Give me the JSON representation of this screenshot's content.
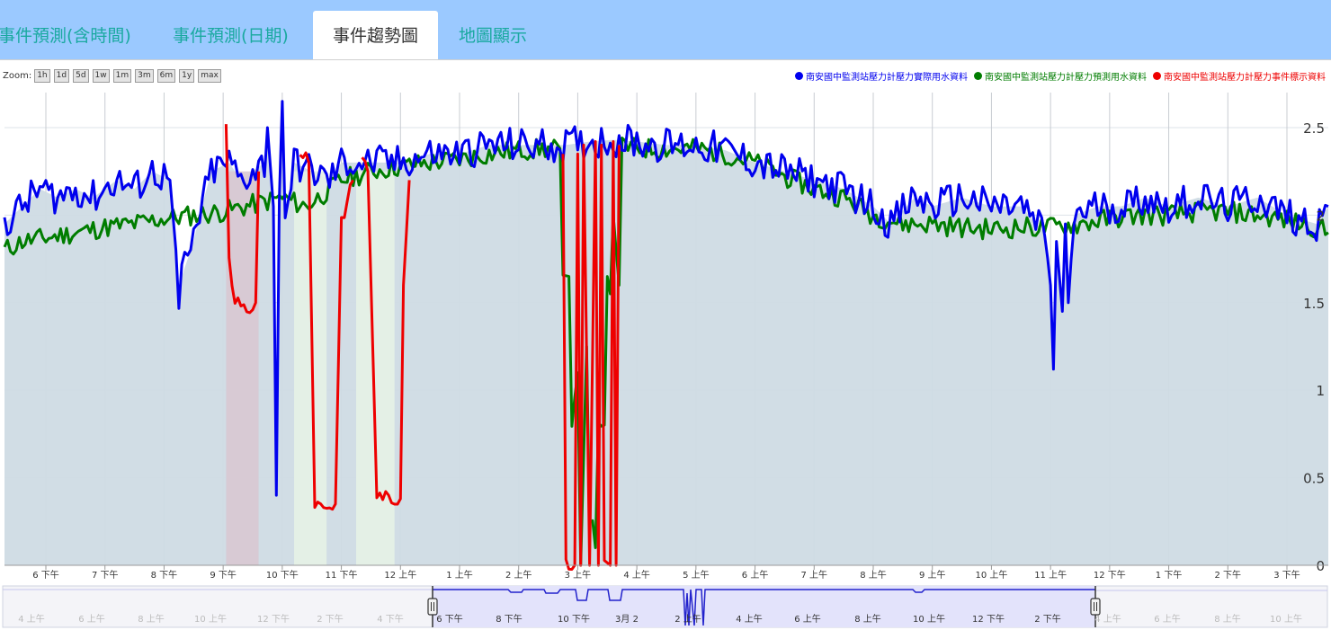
{
  "tabs": [
    {
      "label": "事件預測(含時間)",
      "active": false
    },
    {
      "label": "事件預測(日期)",
      "active": false
    },
    {
      "label": "事件趨勢圖",
      "active": true
    },
    {
      "label": "地圖顯示",
      "active": false
    }
  ],
  "zoom": {
    "label": "Zoom:",
    "buttons": [
      "1h",
      "1d",
      "5d",
      "1w",
      "1m",
      "3m",
      "6m",
      "1y",
      "max"
    ]
  },
  "colors": {
    "tab_bar": "#9bc9ff",
    "tab_text": "#1aa9a0",
    "actual": "#0000ee",
    "predicted": "#007d00",
    "event": "#ee0000",
    "plot_fill": "#cfdbe4",
    "navigator_fill": "#e3e3fb"
  },
  "chart_data": {
    "type": "line",
    "title": "",
    "xlabel": "",
    "ylabel": "",
    "ylim": [
      0,
      2.7
    ],
    "y_ticks": [
      "0",
      "0.5",
      "1",
      "1.5",
      "2",
      "2.5"
    ],
    "x_ticks": [
      "6 下午",
      "7 下午",
      "8 下午",
      "9 下午",
      "10 下午",
      "11 下午",
      "12 上午",
      "1 上午",
      "2 上午",
      "3 上午",
      "4 上午",
      "5 上午",
      "6 上午",
      "7 上午",
      "8 上午",
      "9 上午",
      "10 上午",
      "11 上午",
      "12 下午",
      "1 下午",
      "2 下午",
      "3 下午"
    ],
    "x_range_hours": [
      17.3,
      39.7
    ],
    "grid": true,
    "legend_position": "top-right",
    "series": [
      {
        "name": "南安國中監測站壓力計壓力實際用水資料",
        "color": "#0000ee",
        "points": [
          [
            17.3,
            1.95
          ],
          [
            17.6,
            2.05
          ],
          [
            17.9,
            2.15
          ],
          [
            18.2,
            2.1
          ],
          [
            18.5,
            2.15
          ],
          [
            18.8,
            2.1
          ],
          [
            19.2,
            2.2
          ],
          [
            19.5,
            2.15
          ],
          [
            19.8,
            2.25
          ],
          [
            20.1,
            2.2
          ],
          [
            20.2,
            1.8
          ],
          [
            20.25,
            1.45
          ],
          [
            20.3,
            1.65
          ],
          [
            20.4,
            1.75
          ],
          [
            20.5,
            1.85
          ],
          [
            20.6,
            2.0
          ],
          [
            20.8,
            2.25
          ],
          [
            21.1,
            2.3
          ],
          [
            21.3,
            2.2
          ],
          [
            21.5,
            2.25
          ],
          [
            21.7,
            2.3
          ],
          [
            21.75,
            2.5
          ],
          [
            21.85,
            2.05
          ],
          [
            21.9,
            0.4
          ],
          [
            21.95,
            2.1
          ],
          [
            22.0,
            2.65
          ],
          [
            22.05,
            2.0
          ],
          [
            22.2,
            2.3
          ],
          [
            22.5,
            2.25
          ],
          [
            22.8,
            2.2
          ],
          [
            23.0,
            2.3
          ],
          [
            23.3,
            2.3
          ],
          [
            23.6,
            2.3
          ],
          [
            24.0,
            2.3
          ],
          [
            24.5,
            2.35
          ],
          [
            25.0,
            2.35
          ],
          [
            25.5,
            2.4
          ],
          [
            26.0,
            2.4
          ],
          [
            26.4,
            2.4
          ],
          [
            26.8,
            2.4
          ],
          [
            27.2,
            2.42
          ],
          [
            27.6,
            2.43
          ],
          [
            28.0,
            2.42
          ],
          [
            28.5,
            2.4
          ],
          [
            29.0,
            2.4
          ],
          [
            29.5,
            2.37
          ],
          [
            30.0,
            2.3
          ],
          [
            30.5,
            2.25
          ],
          [
            31.0,
            2.2
          ],
          [
            31.5,
            2.15
          ],
          [
            32.0,
            2.05
          ],
          [
            32.3,
            1.95
          ],
          [
            32.7,
            2.1
          ],
          [
            33.0,
            2.05
          ],
          [
            33.5,
            2.1
          ],
          [
            34.0,
            2.05
          ],
          [
            34.5,
            2.05
          ],
          [
            34.9,
            1.9
          ],
          [
            35.0,
            1.6
          ],
          [
            35.05,
            1.12
          ],
          [
            35.1,
            1.85
          ],
          [
            35.2,
            1.45
          ],
          [
            35.25,
            1.95
          ],
          [
            35.3,
            1.5
          ],
          [
            35.4,
            2.0
          ],
          [
            35.8,
            2.05
          ],
          [
            36.2,
            2.05
          ],
          [
            36.6,
            2.1
          ],
          [
            37.0,
            2.05
          ],
          [
            37.5,
            2.1
          ],
          [
            38.0,
            2.05
          ],
          [
            38.5,
            2.1
          ],
          [
            39.0,
            2.0
          ],
          [
            39.5,
            1.95
          ],
          [
            39.7,
            2.05
          ]
        ]
      },
      {
        "name": "南安國中監測站壓力計壓力預測用水資料",
        "color": "#007d00",
        "points": [
          [
            17.3,
            1.8
          ],
          [
            17.6,
            1.85
          ],
          [
            18.0,
            1.87
          ],
          [
            18.5,
            1.9
          ],
          [
            19.0,
            1.93
          ],
          [
            19.5,
            1.95
          ],
          [
            20.0,
            1.98
          ],
          [
            20.5,
            2.0
          ],
          [
            21.0,
            2.02
          ],
          [
            21.5,
            2.06
          ],
          [
            22.0,
            2.1
          ],
          [
            22.4,
            2.05
          ],
          [
            22.7,
            2.12
          ],
          [
            23.0,
            2.2
          ],
          [
            23.5,
            2.25
          ],
          [
            24.0,
            2.28
          ],
          [
            24.5,
            2.3
          ],
          [
            25.0,
            2.32
          ],
          [
            25.5,
            2.35
          ],
          [
            26.0,
            2.37
          ],
          [
            26.5,
            2.38
          ],
          [
            26.7,
            2.38
          ],
          [
            26.75,
            1.6
          ],
          [
            26.85,
            1.65
          ],
          [
            26.9,
            0.85
          ],
          [
            27.0,
            1.1
          ],
          [
            27.05,
            0.0
          ],
          [
            27.15,
            1.25
          ],
          [
            27.2,
            0.3
          ],
          [
            27.3,
            0.1
          ],
          [
            27.35,
            0.85
          ],
          [
            27.45,
            0.8
          ],
          [
            27.5,
            1.6
          ],
          [
            27.55,
            1.55
          ],
          [
            27.6,
            2.0
          ],
          [
            27.7,
            1.6
          ],
          [
            27.75,
            2.4
          ],
          [
            28.0,
            2.38
          ],
          [
            28.5,
            2.38
          ],
          [
            29.0,
            2.38
          ],
          [
            29.5,
            2.35
          ],
          [
            30.0,
            2.3
          ],
          [
            30.5,
            2.22
          ],
          [
            31.0,
            2.15
          ],
          [
            31.5,
            2.1
          ],
          [
            32.0,
            2.0
          ],
          [
            32.5,
            1.95
          ],
          [
            33.0,
            1.95
          ],
          [
            33.5,
            1.93
          ],
          [
            34.0,
            1.92
          ],
          [
            34.5,
            1.93
          ],
          [
            35.0,
            1.93
          ],
          [
            35.5,
            1.95
          ],
          [
            36.0,
            1.98
          ],
          [
            36.5,
            2.0
          ],
          [
            37.0,
            2.0
          ],
          [
            37.5,
            2.02
          ],
          [
            38.0,
            2.02
          ],
          [
            38.5,
            2.0
          ],
          [
            39.0,
            1.97
          ],
          [
            39.5,
            1.93
          ],
          [
            39.7,
            1.9
          ]
        ]
      },
      {
        "name": "南安國中監測站壓力計壓力事件標示資料",
        "color": "#ee0000",
        "segments": [
          [
            [
              21.05,
              2.52
            ],
            [
              21.1,
              1.75
            ],
            [
              21.2,
              1.5
            ],
            [
              21.4,
              1.45
            ],
            [
              21.55,
              1.5
            ],
            [
              21.6,
              2.25
            ]
          ],
          [
            [
              22.3,
              2.35
            ],
            [
              22.45,
              2.3
            ],
            [
              22.55,
              0.35
            ],
            [
              22.8,
              0.33
            ],
            [
              22.9,
              0.35
            ],
            [
              23.0,
              1.95
            ],
            [
              23.1,
              2.1
            ],
            [
              23.2,
              2.2
            ]
          ],
          [
            [
              23.35,
              2.32
            ],
            [
              23.45,
              2.25
            ],
            [
              23.6,
              0.4
            ],
            [
              23.8,
              0.38
            ],
            [
              24.0,
              0.38
            ],
            [
              24.05,
              1.6
            ],
            [
              24.15,
              2.2
            ]
          ],
          [
            [
              26.75,
              2.35
            ],
            [
              26.8,
              0.0
            ],
            [
              26.95,
              0.0
            ],
            [
              27.0,
              2.35
            ],
            [
              27.05,
              0.0
            ],
            [
              27.1,
              2.4
            ],
            [
              27.2,
              0.0
            ],
            [
              27.3,
              2.42
            ],
            [
              27.35,
              0.0
            ],
            [
              27.4,
              2.4
            ],
            [
              27.45,
              0.0
            ],
            [
              27.55,
              0.0
            ],
            [
              27.6,
              2.42
            ],
            [
              27.65,
              0.0
            ],
            [
              27.7,
              2.4
            ]
          ]
        ]
      }
    ],
    "event_bands": [
      [
        21.05,
        21.6
      ],
      [
        22.2,
        22.75
      ],
      [
        23.25,
        23.9
      ]
    ],
    "navigator": {
      "x_ticks": [
        "4 上午",
        "6 上午",
        "8 上午",
        "10 上午",
        "12 下午",
        "2 下午",
        "4 下午",
        "6 下午",
        "8 下午",
        "10 下午",
        "3月 2",
        "2 上午",
        "4 上午",
        "6 上午",
        "8 上午",
        "10 上午",
        "12 下午",
        "2 下午",
        "4 上午",
        "6 上午",
        "8 上午",
        "10 上午"
      ],
      "selection": "6 下午 – 3 下午"
    }
  }
}
